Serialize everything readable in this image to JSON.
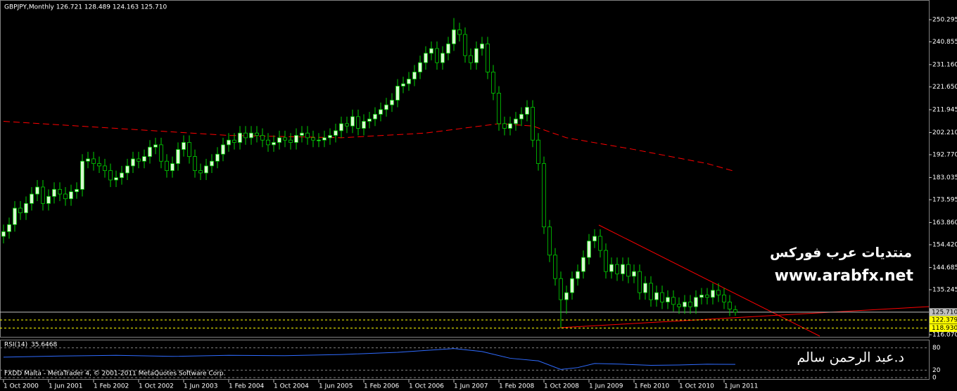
{
  "chart_data": {
    "type": "candlestick",
    "header": "GBPJPY,Monthly  126.721 128.489 124.163 125.710",
    "open": [
      158,
      160,
      163,
      170,
      168,
      172,
      176,
      179,
      172,
      175,
      178,
      176,
      174,
      177,
      178,
      190,
      191,
      189,
      188,
      186,
      182,
      183,
      185,
      188,
      191,
      190,
      192,
      196,
      197,
      190,
      186,
      189,
      195,
      198,
      192,
      186,
      185,
      188,
      190,
      193,
      197,
      199,
      198,
      202,
      200,
      202,
      201,
      199,
      197,
      198,
      200,
      199,
      198,
      201,
      202,
      200,
      199,
      199,
      200,
      201,
      203,
      206,
      205,
      209,
      204,
      207,
      208,
      210,
      212,
      214,
      216,
      222,
      223,
      225,
      228,
      232,
      236,
      238,
      232,
      236,
      240,
      246,
      244,
      235,
      232,
      238,
      240,
      228,
      219,
      206,
      204,
      206,
      208,
      210,
      213,
      199,
      189,
      162,
      150,
      140,
      131,
      134,
      140,
      143,
      149,
      156,
      158,
      152,
      143,
      146,
      142,
      146,
      141,
      143,
      134,
      138,
      131,
      134,
      130,
      132,
      129,
      128,
      130,
      128,
      132,
      133,
      132,
      135,
      133,
      130,
      126.721
    ],
    "high": [
      163,
      166,
      173,
      173,
      175,
      179,
      182,
      182,
      178,
      181,
      181,
      179,
      180,
      181,
      193,
      194,
      194,
      192,
      191,
      189,
      186,
      188,
      191,
      194,
      194,
      195,
      199,
      200,
      200,
      193,
      192,
      198,
      201,
      201,
      195,
      189,
      191,
      193,
      196,
      200,
      202,
      202,
      205,
      205,
      205,
      205,
      204,
      202,
      201,
      203,
      203,
      202,
      204,
      205,
      205,
      203,
      202,
      203,
      204,
      206,
      209,
      209,
      212,
      212,
      210,
      211,
      213,
      215,
      217,
      219,
      225,
      226,
      228,
      231,
      235,
      239,
      241,
      241,
      239,
      243,
      251,
      249,
      247,
      238,
      241,
      243,
      243,
      231,
      222,
      209,
      209,
      211,
      213,
      216,
      216,
      202,
      192,
      165,
      153,
      143,
      137,
      143,
      146,
      152,
      159,
      161,
      161,
      155,
      149,
      149,
      149,
      149,
      146,
      146,
      141,
      141,
      137,
      137,
      135,
      135,
      132,
      133,
      133,
      135,
      136,
      136,
      138,
      138,
      136,
      133,
      128.489
    ],
    "low": [
      155,
      157,
      160,
      165,
      165,
      169,
      173,
      169,
      169,
      172,
      173,
      171,
      171,
      174,
      175,
      187,
      186,
      185,
      183,
      179,
      179,
      180,
      182,
      185,
      187,
      187,
      189,
      193,
      187,
      183,
      183,
      186,
      192,
      189,
      183,
      182,
      182,
      185,
      187,
      190,
      194,
      195,
      195,
      197,
      197,
      198,
      196,
      194,
      194,
      195,
      196,
      195,
      195,
      198,
      197,
      196,
      196,
      196,
      197,
      198,
      200,
      202,
      202,
      201,
      201,
      204,
      205,
      207,
      209,
      211,
      213,
      219,
      220,
      222,
      225,
      229,
      233,
      229,
      229,
      233,
      237,
      241,
      232,
      229,
      229,
      235,
      225,
      216,
      203,
      201,
      201,
      203,
      205,
      207,
      196,
      186,
      159,
      147,
      137,
      119,
      125,
      131,
      137,
      140,
      146,
      153,
      149,
      140,
      140,
      139,
      139,
      138,
      138,
      131,
      131,
      128,
      128,
      127,
      127,
      126,
      125,
      125,
      125,
      125,
      129,
      129,
      129,
      130,
      127,
      124,
      124.163
    ],
    "close": [
      160,
      163,
      170,
      168,
      172,
      176,
      179,
      172,
      175,
      178,
      176,
      174,
      177,
      178,
      190,
      191,
      189,
      188,
      186,
      182,
      183,
      185,
      188,
      191,
      190,
      192,
      196,
      197,
      190,
      186,
      189,
      195,
      198,
      192,
      186,
      185,
      188,
      190,
      193,
      197,
      199,
      198,
      202,
      200,
      202,
      201,
      199,
      197,
      198,
      200,
      199,
      198,
      201,
      202,
      200,
      199,
      199,
      200,
      201,
      203,
      206,
      205,
      209,
      204,
      207,
      208,
      210,
      212,
      214,
      216,
      222,
      223,
      225,
      228,
      232,
      236,
      238,
      232,
      236,
      240,
      246,
      244,
      235,
      232,
      238,
      240,
      228,
      219,
      206,
      204,
      206,
      208,
      210,
      213,
      199,
      189,
      162,
      150,
      140,
      131,
      134,
      140,
      143,
      149,
      156,
      158,
      152,
      143,
      146,
      142,
      146,
      141,
      143,
      134,
      138,
      131,
      134,
      130,
      132,
      129,
      128,
      130,
      128,
      132,
      133,
      132,
      135,
      133,
      130,
      127,
      125.71
    ],
    "up_color": "#d8f7d0",
    "down_color": "#000000",
    "wick_color": "#00d000",
    "ylim": [
      114.87,
      258.69
    ],
    "yticks": [
      250.295,
      240.855,
      {
        "value": 231.16,
        "label": "231.160"
      },
      {
        "value": 221.65,
        "label": "221.650"
      },
      211.945,
      {
        "value": 202.21,
        "label": "202.210"
      },
      {
        "value": 192.77,
        "label": "192.770"
      },
      183.035,
      173.595,
      {
        "value": 163.86,
        "label": "163.860"
      },
      {
        "value": 154.42,
        "label": "154.420"
      },
      144.685,
      135.245,
      {
        "value": 116.07,
        "label": "116.070"
      }
    ],
    "levels": [
      {
        "value": 125.71,
        "label": "125.710",
        "color": "#c0c0c0"
      },
      {
        "value": 122.379,
        "label": "122.379",
        "color": "#ffff00"
      },
      {
        "value": 118.93,
        "label": "118.930",
        "color": "#ffff00"
      }
    ],
    "xticks": [
      {
        "value": 0,
        "label": "1 Oct 2000"
      },
      {
        "value": 8,
        "label": "1 Jun 2001"
      },
      {
        "value": 16,
        "label": "1 Feb 2002"
      },
      {
        "value": 24,
        "label": "1 Oct 2002"
      },
      {
        "value": 32,
        "label": "1 Jun 2003"
      },
      {
        "value": 40,
        "label": "1 Feb 2004"
      },
      {
        "value": 48,
        "label": "1 Oct 2004"
      },
      {
        "value": 56,
        "label": "1 Jun 2005"
      },
      {
        "value": 64,
        "label": "1 Feb 2006"
      },
      {
        "value": 72,
        "label": "1 Oct 2006"
      },
      {
        "value": 80,
        "label": "1 Jun 2007"
      },
      {
        "value": 88,
        "label": "1 Feb 2008"
      },
      {
        "value": 96,
        "label": "1 Oct 2008"
      },
      {
        "value": 104,
        "label": "1 Jun 2009"
      },
      {
        "value": 112,
        "label": "1 Feb 2010"
      },
      {
        "value": 120,
        "label": "1 Oct 2010"
      },
      {
        "value": 128,
        "label": "1 Jun 2011"
      }
    ],
    "ma": {
      "color": "#ff0000",
      "x": [
        0,
        20,
        40,
        60,
        75,
        88,
        94,
        100,
        112,
        125,
        130
      ],
      "values": [
        207,
        204,
        201,
        200,
        202,
        206,
        205,
        200,
        195,
        189,
        185.6
      ]
    },
    "rsi": {
      "name": "RSI(14)",
      "color": "#2f6bff",
      "ylim": [
        0,
        100
      ],
      "yticks": [
        80,
        20,
        0
      ],
      "x": [
        0,
        10,
        20,
        30,
        40,
        50,
        60,
        70,
        80,
        85,
        90,
        95,
        99,
        102,
        105,
        110,
        115,
        120,
        125,
        130
      ],
      "values": [
        55,
        58,
        60,
        57,
        60,
        59,
        62,
        68,
        78,
        70,
        52,
        45,
        22,
        27,
        38,
        36,
        33,
        34,
        36,
        35.6468
      ]
    }
  },
  "watermark": {
    "forum": "منتديات عرب فوركس",
    "site": "www.arabfx.net",
    "author": "د.عبد الرحمن سالم",
    "copyright": "FXDD Malta - MetaTrader 4, © 2001-2011 MetaQuotes Software Corp."
  }
}
